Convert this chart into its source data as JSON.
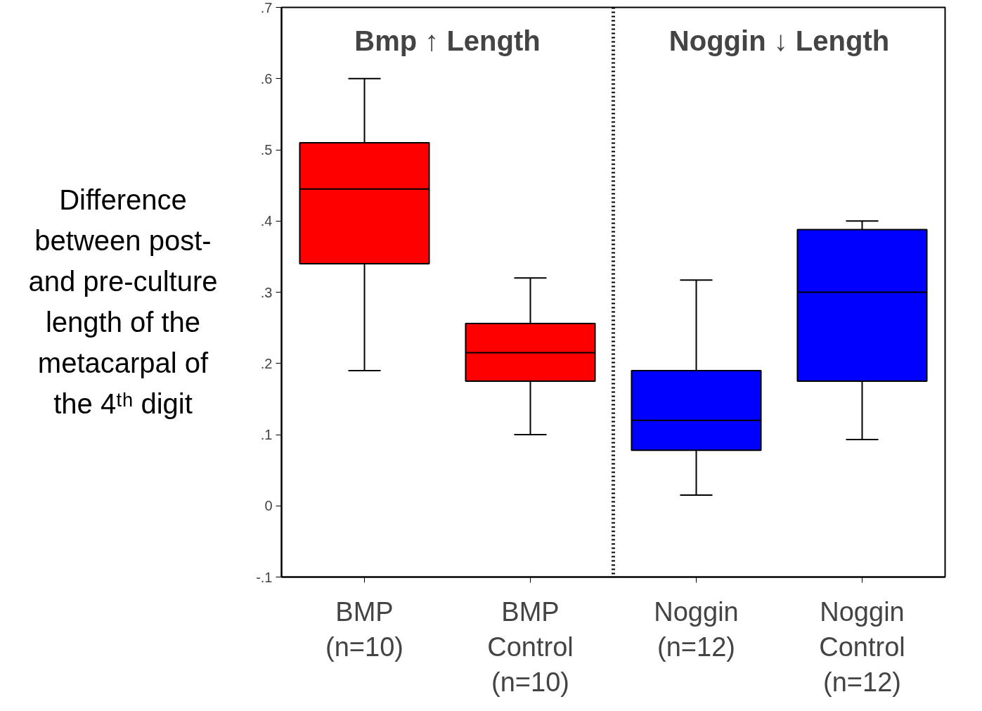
{
  "chart_data": {
    "type": "box",
    "ylabel": "Difference\nbetween post-\nand pre-culture\nlength of the\nmetacarpal of\nthe 4ᵗʰ digit",
    "categories": [
      "BMP\n(n=10)",
      "BMP\nControl\n(n=10)",
      "Noggin\n(n=12)",
      "Noggin\nControl\n(n=12)"
    ],
    "colors": [
      "#ff0000",
      "#ff0000",
      "#0000ff",
      "#0000ff"
    ],
    "boxes": [
      {
        "low": 0.19,
        "q1": 0.34,
        "median": 0.445,
        "q3": 0.51,
        "high": 0.6
      },
      {
        "low": 0.1,
        "q1": 0.175,
        "median": 0.215,
        "q3": 0.256,
        "high": 0.32
      },
      {
        "low": 0.015,
        "q1": 0.078,
        "median": 0.12,
        "q3": 0.19,
        "high": 0.317
      },
      {
        "low": 0.093,
        "q1": 0.175,
        "median": 0.3,
        "q3": 0.388,
        "high": 0.4
      }
    ],
    "ylim": [
      -0.1,
      0.7
    ],
    "yticks": [
      {
        "value": -0.1,
        "label": "-.1"
      },
      0,
      {
        "value": 0.1,
        "label": ".1"
      },
      {
        "value": 0.2,
        "label": ".2"
      },
      {
        "value": 0.3,
        "label": ".3"
      },
      {
        "value": 0.4,
        "label": ".4"
      },
      {
        "value": 0.5,
        "label": ".5"
      },
      {
        "value": 0.6,
        "label": ".6"
      },
      {
        "value": 0.7,
        "label": ".7"
      }
    ],
    "annotations": [
      "Bmp ↑ Length",
      "Noggin ↓ Length"
    ],
    "grid": false
  }
}
